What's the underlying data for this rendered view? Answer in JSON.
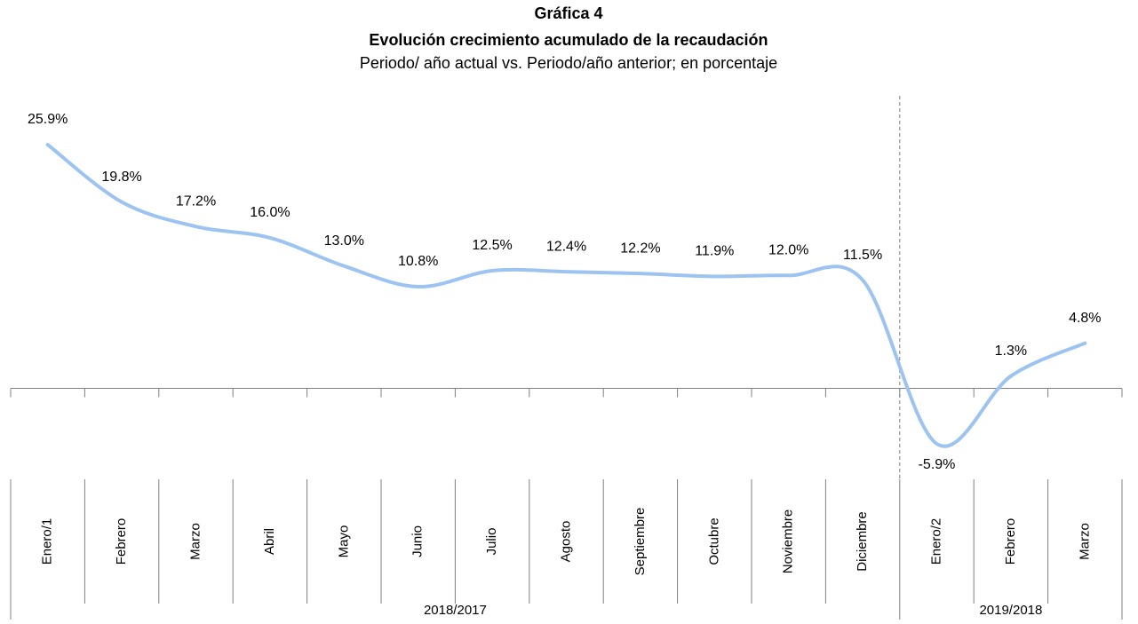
{
  "chart_data": {
    "type": "line",
    "title": "Gráfica 4",
    "subtitle": "Evolución crecimiento acumulado de la recaudación",
    "description": "Periodo/ año actual vs. Periodo/año anterior; en porcentaje",
    "color": "#9dc3f0",
    "groups": [
      {
        "name": "2018/2017",
        "categories": [
          "Enero/1",
          "Febrero",
          "Marzo",
          "Abril",
          "Mayo",
          "Junio",
          "Julio",
          "Agosto",
          "Septiembre",
          "Octubre",
          "Noviembre",
          "Diciembre"
        ],
        "values": [
          25.9,
          19.8,
          17.2,
          16.0,
          13.0,
          10.8,
          12.5,
          12.4,
          12.2,
          11.9,
          12.0,
          11.5
        ],
        "value_labels": [
          "25.9%",
          "19.8%",
          "17.2%",
          "16.0%",
          "13.0%",
          "10.8%",
          "12.5%",
          "12.4%",
          "12.2%",
          "11.9%",
          "12.0%",
          "11.5%"
        ]
      },
      {
        "name": "2019/2018",
        "categories": [
          "Enero/2",
          "Febrero",
          "Marzo"
        ],
        "values": [
          -5.9,
          1.3,
          4.8
        ],
        "value_labels": [
          "-5.9%",
          "1.3%",
          "4.8%"
        ]
      }
    ]
  }
}
